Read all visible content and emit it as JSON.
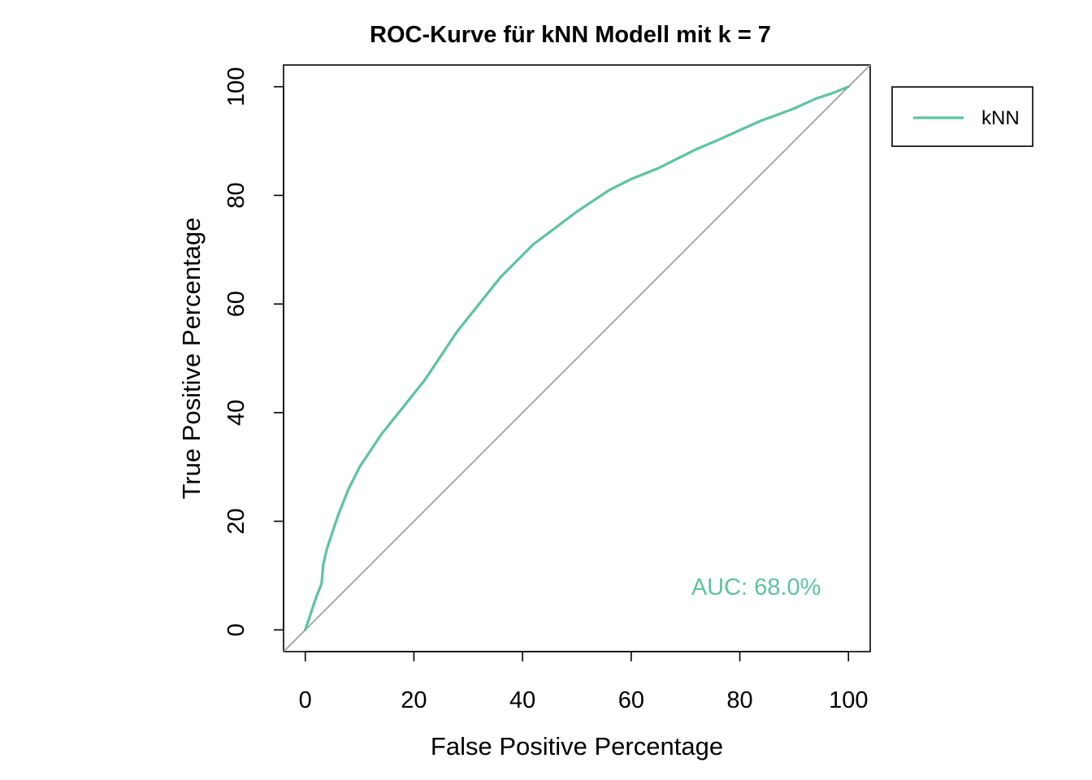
{
  "chart_data": {
    "type": "line",
    "title": "ROC-Kurve für kNN Modell mit k = 7",
    "xlabel": "False Positive Percentage",
    "ylabel": "True Positive Percentage",
    "xlim": [
      -4,
      104
    ],
    "ylim": [
      -4,
      104
    ],
    "xticks": [
      0,
      20,
      40,
      60,
      80,
      100
    ],
    "yticks": [
      0,
      20,
      40,
      60,
      80,
      100
    ],
    "xtick_labels": [
      "0",
      "20",
      "40",
      "60",
      "80",
      "100"
    ],
    "ytick_labels": [
      "0",
      "20",
      "40",
      "60",
      "80",
      "100"
    ],
    "grid": false,
    "legend": {
      "position": "top-right, outside plot",
      "entries": [
        "kNN"
      ]
    },
    "reference_line": {
      "type": "diagonal",
      "color": "#999999"
    },
    "annotation": {
      "text": "AUC: 68.0%",
      "x": 83,
      "y": 8,
      "color": "#5ac59a"
    },
    "series": [
      {
        "name": "kNN",
        "color": "#5ac59a",
        "x": [
          0,
          1,
          2,
          3,
          3.3,
          4,
          5,
          6,
          7,
          8,
          9,
          10,
          12,
          14,
          16,
          18,
          20,
          22,
          24,
          26,
          28,
          30,
          32,
          34,
          36,
          38,
          40,
          42,
          44,
          46,
          48,
          50,
          53,
          56,
          60,
          65,
          70,
          72,
          76,
          80,
          84,
          86,
          90,
          94,
          97,
          100
        ],
        "y": [
          0,
          3,
          6,
          8.5,
          12,
          15,
          18,
          21,
          23.5,
          26,
          28,
          30,
          33,
          36,
          38.5,
          41,
          43.5,
          46,
          49,
          52,
          55,
          57.5,
          60,
          62.5,
          65,
          67,
          69,
          71,
          72.5,
          74,
          75.5,
          77,
          79,
          81,
          83,
          85,
          87.5,
          88.5,
          90.2,
          92,
          93.8,
          94.5,
          96,
          97.8,
          98.8,
          100
        ]
      }
    ]
  }
}
